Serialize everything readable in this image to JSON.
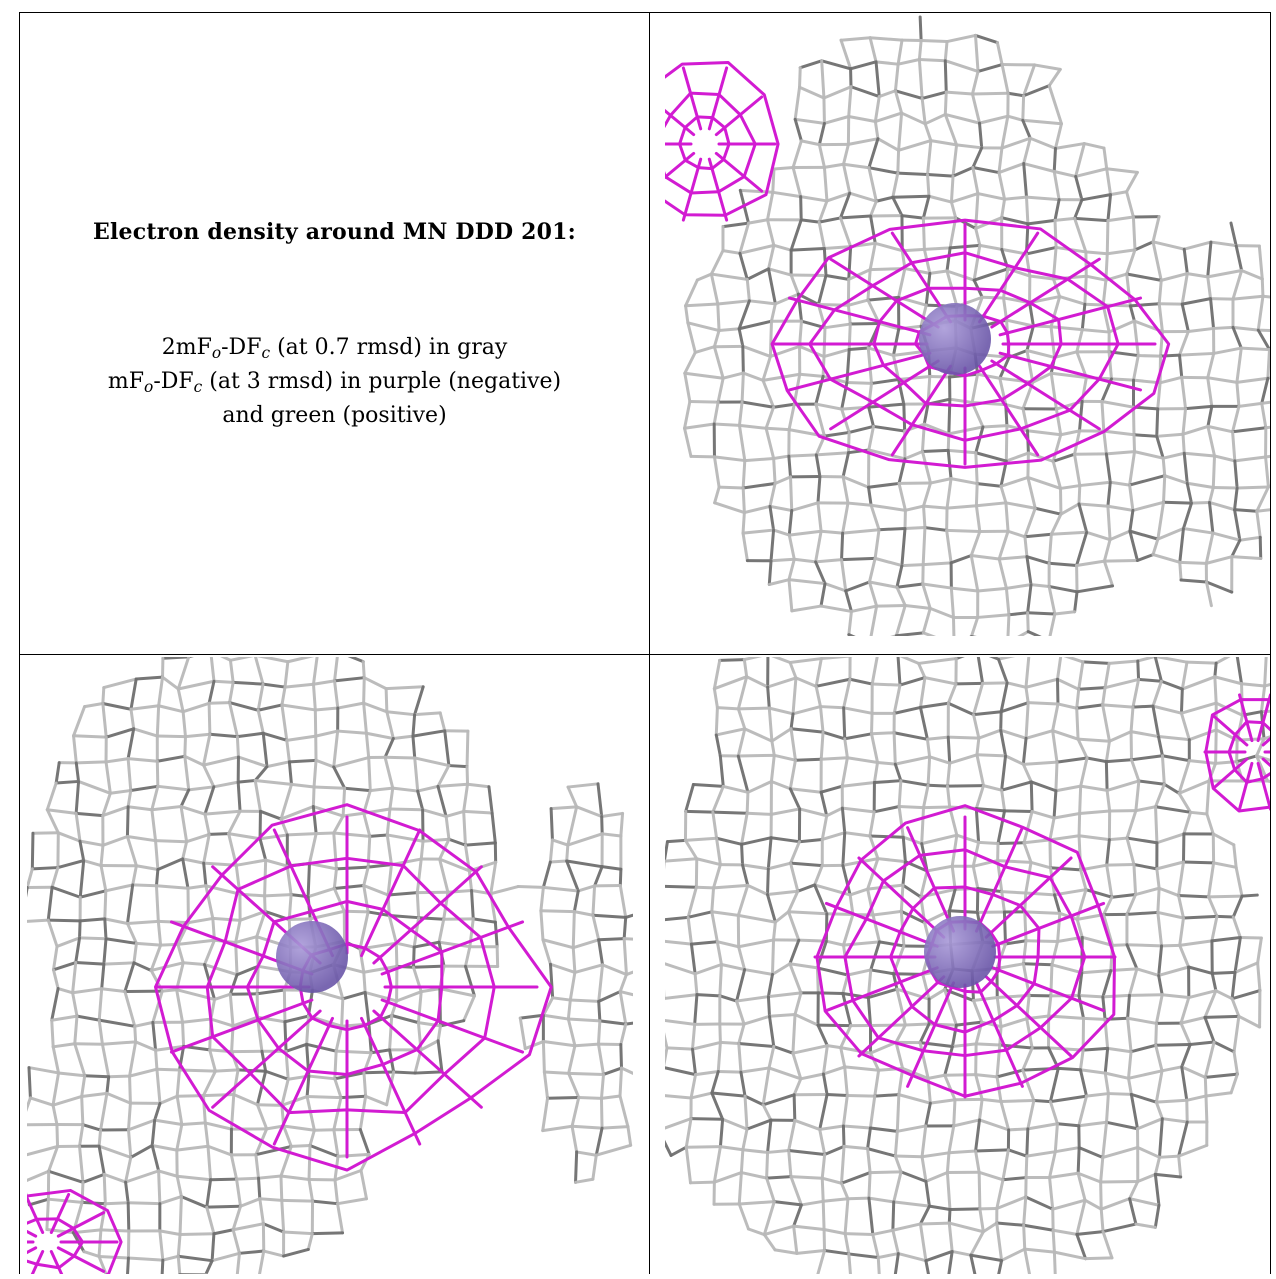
{
  "legend": {
    "title": "Electron density around MN DDD 201:",
    "line1": {
      "prefix": "2mF",
      "sub1": "o",
      "mid": "-DF",
      "sub2": "c",
      "suffix": " (at 0.7 rmsd) in gray"
    },
    "line2": {
      "prefix": "mF",
      "sub1": "o",
      "mid": "-DF",
      "sub2": "c",
      "suffix": " (at 3 rmsd) in purple (negative)"
    },
    "line3": "and green (positive)"
  },
  "colors": {
    "gray_mesh": "#b9b9b9",
    "gray_mesh_dark": "#6f6f6f",
    "purple_mesh": "#d21bd2",
    "atom": "#6a56a8",
    "border": "#000000"
  }
}
